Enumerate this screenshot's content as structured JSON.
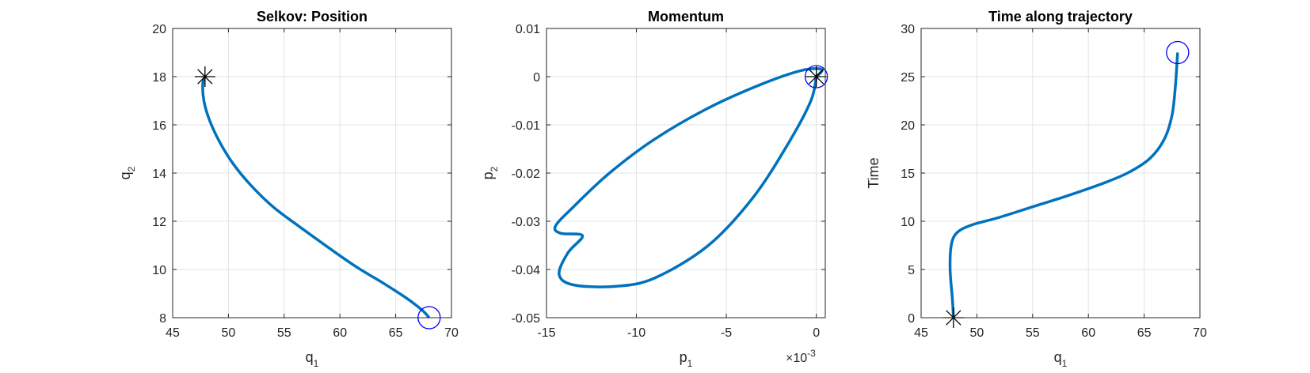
{
  "chart_data": [
    {
      "type": "line",
      "title": "Selkov: Position",
      "xlabel": {
        "base": "q",
        "sub": "1"
      },
      "ylabel": {
        "base": "q",
        "sub": "2"
      },
      "xlim": [
        45,
        70
      ],
      "ylim": [
        8,
        20
      ],
      "xticks": [
        45,
        50,
        55,
        60,
        65,
        70
      ],
      "yticks": [
        8,
        10,
        12,
        14,
        16,
        18,
        20
      ],
      "xtick_labels": [
        "45",
        "50",
        "55",
        "60",
        "65",
        "70"
      ],
      "ytick_labels": [
        "8",
        "10",
        "12",
        "14",
        "16",
        "18",
        "20"
      ],
      "grid": true,
      "series": [
        {
          "color": "#0072BD",
          "x": [
            47.9,
            47.7,
            47.8,
            48.3,
            49.2,
            50.4,
            52.0,
            54.0,
            56.3,
            59.0,
            61.5,
            64.0,
            66.0,
            67.4,
            68.0
          ],
          "y": [
            18.0,
            17.7,
            17.0,
            16.2,
            15.3,
            14.4,
            13.5,
            12.6,
            11.8,
            10.9,
            10.1,
            9.4,
            8.8,
            8.3,
            8.0
          ]
        }
      ],
      "markers": [
        {
          "kind": "circle",
          "color": "#0000FF",
          "x": 68.0,
          "y": 8.0
        },
        {
          "kind": "asterisk",
          "color": "#000000",
          "x": 47.9,
          "y": 18.0
        }
      ]
    },
    {
      "type": "line",
      "title": "Momentum",
      "xlabel": {
        "base": "p",
        "sub": "1"
      },
      "ylabel": {
        "base": "p",
        "sub": "2"
      },
      "x_exponent": {
        "base": "×10",
        "exp": "-3"
      },
      "xlim": [
        -0.015,
        0.0005
      ],
      "ylim": [
        -0.05,
        0.01
      ],
      "xticks": [
        -0.015,
        -0.01,
        -0.005,
        0
      ],
      "yticks": [
        -0.05,
        -0.04,
        -0.03,
        -0.02,
        -0.01,
        0,
        0.01
      ],
      "xtick_labels": [
        "-15",
        "-10",
        "-5",
        "0"
      ],
      "ytick_labels": [
        "-0.05",
        "-0.04",
        "-0.03",
        "-0.02",
        "-0.01",
        "0",
        "0.01"
      ],
      "grid": true,
      "series": [
        {
          "color": "#0072BD",
          "x": [
            0.0,
            0.0003,
            -0.0008,
            -0.003,
            -0.006,
            -0.009,
            -0.0115,
            -0.0135,
            -0.0145,
            -0.0142,
            -0.013,
            -0.0138,
            -0.0143,
            -0.0135,
            -0.0112,
            -0.009,
            -0.006,
            -0.0035,
            -0.0015,
            -0.0003,
            0.0
          ],
          "y": [
            0.0,
            0.0015,
            0.0013,
            -0.0015,
            -0.0065,
            -0.013,
            -0.02,
            -0.027,
            -0.031,
            -0.0325,
            -0.033,
            -0.0365,
            -0.041,
            -0.0432,
            -0.0435,
            -0.0418,
            -0.035,
            -0.025,
            -0.0135,
            -0.005,
            0.0
          ]
        }
      ],
      "markers": [
        {
          "kind": "circle",
          "color": "#0000FF",
          "x": 0.0,
          "y": 0.0
        },
        {
          "kind": "asterisk",
          "color": "#000000",
          "x": 0.0,
          "y": 0.0
        }
      ]
    },
    {
      "type": "line",
      "title": "Time along trajectory",
      "xlabel": {
        "base": "q",
        "sub": "1"
      },
      "ylabel": {
        "base": "Time",
        "sub": ""
      },
      "xlim": [
        45,
        70
      ],
      "ylim": [
        0,
        30
      ],
      "xticks": [
        45,
        50,
        55,
        60,
        65,
        70
      ],
      "yticks": [
        0,
        5,
        10,
        15,
        20,
        25,
        30
      ],
      "xtick_labels": [
        "45",
        "50",
        "55",
        "60",
        "65",
        "70"
      ],
      "ytick_labels": [
        "0",
        "5",
        "10",
        "15",
        "20",
        "25",
        "30"
      ],
      "grid": true,
      "series": [
        {
          "color": "#0072BD",
          "x": [
            47.9,
            47.8,
            47.6,
            47.7,
            48.2,
            49.5,
            52.0,
            55.0,
            58.0,
            61.0,
            63.5,
            65.5,
            66.8,
            67.5,
            67.8,
            68.0
          ],
          "y": [
            0.0,
            2.0,
            5.0,
            7.5,
            8.8,
            9.6,
            10.4,
            11.5,
            12.6,
            13.8,
            15.0,
            16.5,
            18.5,
            21.0,
            24.0,
            27.5
          ]
        }
      ],
      "markers": [
        {
          "kind": "circle",
          "color": "#0000FF",
          "x": 68.0,
          "y": 27.5
        },
        {
          "kind": "asterisk",
          "color": "#000000",
          "x": 47.9,
          "y": 0.0
        }
      ]
    }
  ]
}
